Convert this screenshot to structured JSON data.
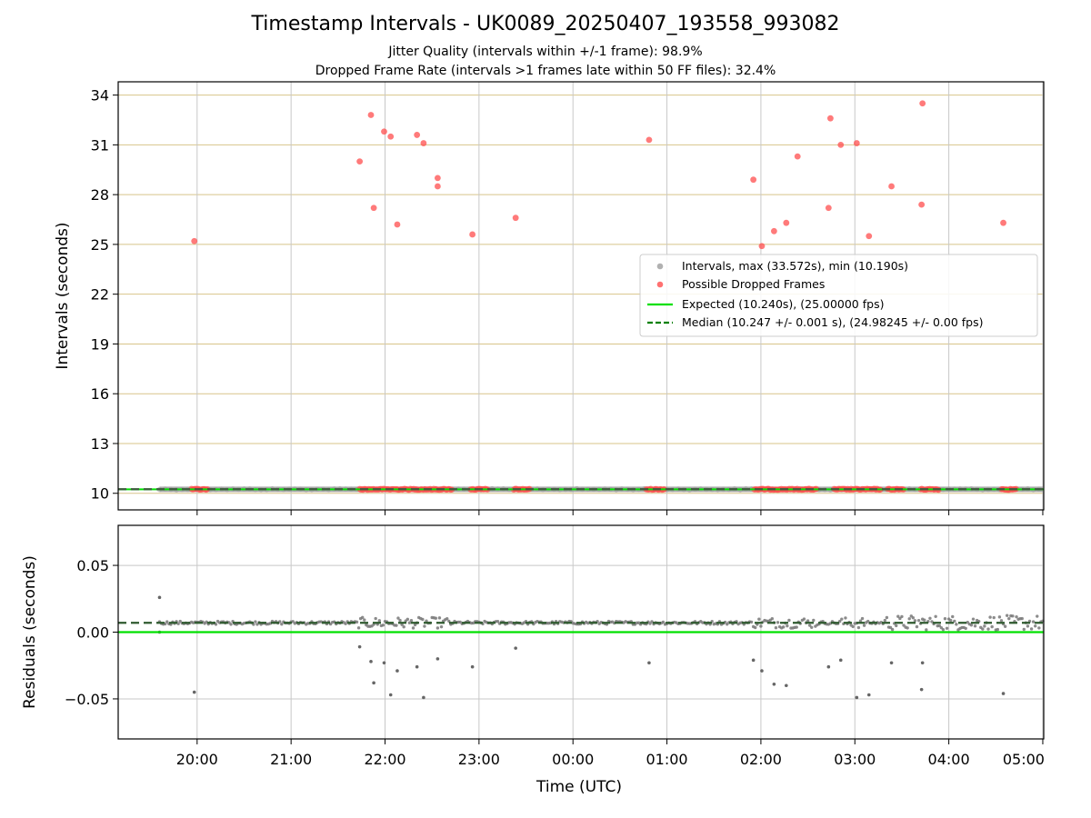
{
  "title": "Timestamp Intervals - UK0089_20250407_193558_993082",
  "subtitle_lines": [
    "Jitter Quality (intervals within +/-1 frame): 98.9%",
    "Dropped Frame Rate (intervals >1 frames late within 50 FF files): 32.4%"
  ],
  "colors": {
    "intervals": "#9e9e9e",
    "dropped": "#ff4d4d",
    "expected": "#00e000",
    "median": "#008000",
    "hgrid": "#d8c48a",
    "vgrid": "#c8c8c8"
  },
  "chart_data": [
    {
      "type": "scatter",
      "ylabel": "Intervals (seconds)",
      "y_ticks": [
        10,
        13,
        16,
        19,
        22,
        25,
        28,
        31,
        34
      ],
      "ylim": [
        9.0,
        34.8
      ],
      "x_ticks": [
        "20:00",
        "21:00",
        "22:00",
        "23:00",
        "00:00",
        "01:00",
        "02:00",
        "03:00",
        "04:00",
        "05:00"
      ],
      "xlim_hours": [
        19.16,
        29.01
      ],
      "grid": true,
      "legend_position": "center-right",
      "legend": [
        "Intervals, max (33.572s), min (10.190s)",
        "Possible Dropped Frames",
        "Expected (10.240s), (25.00000 fps)",
        "Median (10.247 +/- 0.001 s), (24.98245 +/- 0.00 fps)"
      ],
      "expected_interval": 10.24,
      "median_interval": 10.247,
      "intervals_x_range_hours": [
        19.6,
        29.0
      ],
      "intervals_value": 10.24,
      "dropped_points": [
        [
          19.97,
          25.2
        ],
        [
          21.73,
          30.0
        ],
        [
          21.85,
          32.8
        ],
        [
          21.88,
          27.2
        ],
        [
          21.99,
          31.8
        ],
        [
          22.06,
          31.5
        ],
        [
          22.13,
          26.2
        ],
        [
          22.34,
          31.6
        ],
        [
          22.41,
          31.1
        ],
        [
          22.56,
          29.0
        ],
        [
          22.56,
          28.5
        ],
        [
          22.93,
          25.6
        ],
        [
          23.39,
          26.6
        ],
        [
          24.81,
          31.3
        ],
        [
          25.92,
          28.9
        ],
        [
          26.01,
          24.9
        ],
        [
          26.14,
          25.8
        ],
        [
          26.27,
          26.3
        ],
        [
          26.39,
          30.3
        ],
        [
          26.72,
          27.2
        ],
        [
          26.74,
          32.6
        ],
        [
          26.85,
          31.0
        ],
        [
          27.02,
          31.1
        ],
        [
          27.15,
          25.5
        ],
        [
          27.39,
          28.5
        ],
        [
          27.71,
          27.4
        ],
        [
          27.72,
          33.5
        ],
        [
          28.58,
          26.3
        ]
      ],
      "dropped_baseline_clusters_hours": [
        [
          19.94,
          20.12
        ],
        [
          21.73,
          22.35
        ],
        [
          22.35,
          22.72
        ],
        [
          22.91,
          23.1
        ],
        [
          23.37,
          23.55
        ],
        [
          24.78,
          24.98
        ],
        [
          25.93,
          26.6
        ],
        [
          26.78,
          27.28
        ],
        [
          27.35,
          27.52
        ],
        [
          27.7,
          27.9
        ],
        [
          28.56,
          28.72
        ]
      ]
    },
    {
      "type": "scatter",
      "xlabel": "Time (UTC)",
      "ylabel": "Residuals (seconds)",
      "y_ticks": [
        0.05,
        0.0,
        -0.05
      ],
      "y_tick_labels": [
        "0.05",
        "0.00",
        "−0.05"
      ],
      "ylim": [
        -0.08,
        0.08
      ],
      "grid": true,
      "expected_residual": 0.0,
      "median_residual": 0.007,
      "residual_baseline": 0.007,
      "residual_outliers": [
        [
          19.6,
          0.026
        ],
        [
          19.6,
          0.0
        ],
        [
          19.97,
          -0.045
        ],
        [
          21.73,
          -0.011
        ],
        [
          21.85,
          -0.022
        ],
        [
          21.88,
          -0.038
        ],
        [
          21.99,
          -0.023
        ],
        [
          22.06,
          -0.047
        ],
        [
          22.13,
          -0.029
        ],
        [
          22.34,
          -0.026
        ],
        [
          22.41,
          -0.049
        ],
        [
          22.56,
          -0.02
        ],
        [
          22.93,
          -0.026
        ],
        [
          23.39,
          -0.012
        ],
        [
          24.81,
          -0.023
        ],
        [
          25.92,
          -0.021
        ],
        [
          26.01,
          -0.029
        ],
        [
          26.14,
          -0.039
        ],
        [
          26.27,
          -0.04
        ],
        [
          26.72,
          -0.026
        ],
        [
          26.85,
          -0.021
        ],
        [
          27.02,
          -0.049
        ],
        [
          27.15,
          -0.047
        ],
        [
          27.39,
          -0.023
        ],
        [
          27.71,
          -0.043
        ],
        [
          27.72,
          -0.023
        ],
        [
          28.58,
          -0.046
        ]
      ]
    }
  ]
}
